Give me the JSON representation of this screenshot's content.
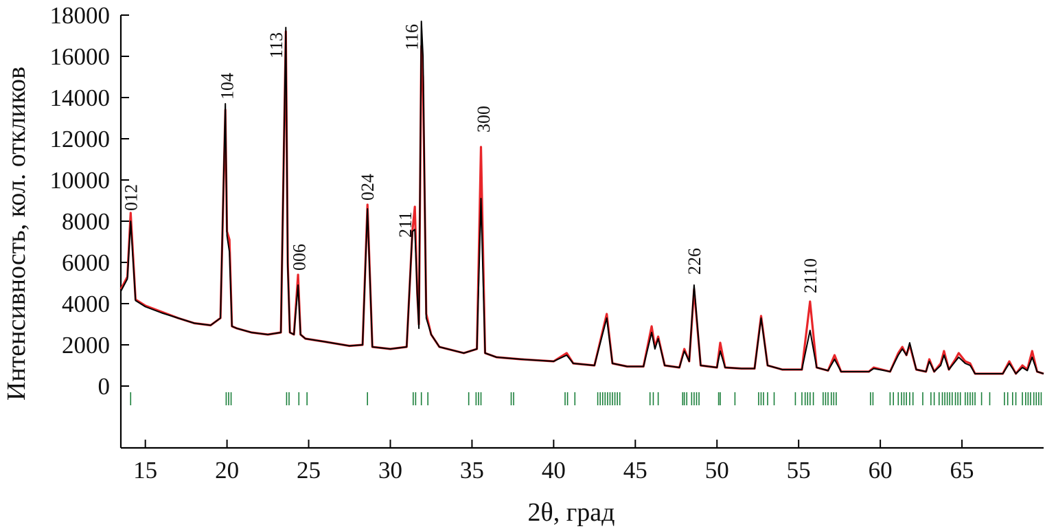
{
  "chart_data": {
    "type": "line",
    "xlabel": "2θ, град",
    "ylabel": "Интенсивность, кол. откликов",
    "xlim": [
      13.5,
      70
    ],
    "ylim": [
      -3000,
      18000
    ],
    "x_ticks": [
      15,
      20,
      25,
      30,
      35,
      40,
      45,
      50,
      55,
      60,
      65
    ],
    "y_ticks": [
      0,
      2000,
      4000,
      6000,
      8000,
      10000,
      12000,
      14000,
      16000,
      18000
    ],
    "grid": false,
    "colors": {
      "observed": "#e8262a",
      "calculated": "#000000",
      "bragg_ticks": "#1a7f3a"
    },
    "series": [
      {
        "role": "observed",
        "x": [
          13.5,
          13.9,
          14.1,
          14.4,
          15.0,
          16.0,
          17.0,
          18.0,
          19.0,
          19.6,
          19.9,
          20.0,
          20.15,
          20.3,
          20.6,
          21.5,
          22.5,
          23.3,
          23.6,
          23.72,
          23.85,
          24.1,
          24.35,
          24.5,
          24.8,
          26.0,
          27.5,
          28.3,
          28.6,
          28.9,
          30.0,
          31.0,
          31.35,
          31.5,
          31.65,
          31.75,
          31.9,
          32.0,
          32.2,
          32.5,
          33.0,
          34.5,
          35.3,
          35.55,
          35.8,
          36.5,
          38.0,
          40.0,
          40.8,
          41.2,
          42.5,
          43.25,
          43.6,
          44.5,
          45.5,
          46.0,
          46.2,
          46.4,
          46.8,
          47.7,
          48.0,
          48.3,
          48.6,
          49.0,
          50.0,
          50.2,
          50.5,
          51.5,
          52.3,
          52.7,
          53.1,
          54.0,
          55.2,
          55.7,
          56.1,
          56.8,
          57.2,
          57.6,
          59.3,
          59.6,
          60.6,
          61.1,
          61.35,
          61.6,
          61.8,
          62.2,
          62.8,
          63.0,
          63.3,
          63.7,
          63.9,
          64.2,
          64.6,
          64.8,
          65.2,
          65.5,
          65.8,
          67.5,
          67.9,
          68.3,
          68.7,
          69.0,
          69.3,
          69.6,
          70.0
        ],
        "y": [
          4700,
          5300,
          8400,
          4200,
          3900,
          3600,
          3300,
          3050,
          2950,
          3300,
          13400,
          7500,
          7100,
          2900,
          2800,
          2600,
          2500,
          2600,
          17200,
          6000,
          2600,
          2500,
          5400,
          2500,
          2300,
          2150,
          1950,
          2000,
          8800,
          1900,
          1800,
          1900,
          7500,
          8700,
          4500,
          3000,
          16500,
          15000,
          3500,
          2500,
          1900,
          1600,
          1800,
          11600,
          1600,
          1400,
          1300,
          1200,
          1600,
          1100,
          1000,
          3500,
          1100,
          950,
          950,
          2900,
          1900,
          2400,
          1000,
          900,
          1800,
          1200,
          4700,
          1000,
          900,
          2100,
          900,
          850,
          850,
          3400,
          1000,
          800,
          800,
          4100,
          900,
          750,
          1500,
          700,
          700,
          900,
          700,
          1600,
          1900,
          1500,
          2000,
          800,
          700,
          1300,
          700,
          1100,
          1700,
          800,
          1300,
          1600,
          1200,
          1100,
          600,
          600,
          1200,
          600,
          1000,
          800,
          1700,
          700,
          600
        ]
      },
      {
        "role": "calculated",
        "x": [
          13.5,
          13.9,
          14.1,
          14.4,
          15.0,
          16.0,
          17.0,
          18.0,
          19.0,
          19.6,
          19.9,
          20.0,
          20.15,
          20.3,
          20.6,
          21.5,
          22.5,
          23.3,
          23.6,
          23.72,
          23.85,
          24.1,
          24.35,
          24.5,
          24.8,
          26.0,
          27.5,
          28.3,
          28.6,
          28.9,
          30.0,
          31.0,
          31.35,
          31.5,
          31.65,
          31.75,
          31.9,
          32.0,
          32.2,
          32.5,
          33.0,
          34.5,
          35.3,
          35.55,
          35.8,
          36.5,
          38.0,
          40.0,
          40.8,
          41.2,
          42.5,
          43.25,
          43.6,
          44.5,
          45.5,
          46.0,
          46.2,
          46.4,
          46.8,
          47.7,
          48.0,
          48.3,
          48.6,
          49.0,
          50.0,
          50.2,
          50.5,
          51.5,
          52.3,
          52.7,
          53.1,
          54.0,
          55.2,
          55.7,
          56.1,
          56.8,
          57.2,
          57.6,
          59.3,
          59.6,
          60.6,
          61.1,
          61.35,
          61.6,
          61.8,
          62.2,
          62.8,
          63.0,
          63.3,
          63.7,
          63.9,
          64.2,
          64.6,
          64.8,
          65.2,
          65.5,
          65.8,
          67.5,
          67.9,
          68.3,
          68.7,
          69.0,
          69.3,
          69.6,
          70.0
        ],
        "y": [
          4600,
          5200,
          8000,
          4150,
          3850,
          3550,
          3300,
          3050,
          2950,
          3300,
          13700,
          7300,
          6500,
          2900,
          2800,
          2600,
          2500,
          2600,
          17400,
          5800,
          2600,
          2500,
          4900,
          2500,
          2300,
          2150,
          1950,
          2000,
          8600,
          1900,
          1800,
          1900,
          7500,
          7600,
          4500,
          2800,
          17700,
          16000,
          3300,
          2500,
          1900,
          1600,
          1800,
          9100,
          1600,
          1400,
          1300,
          1200,
          1500,
          1100,
          1000,
          3300,
          1100,
          950,
          950,
          2600,
          1800,
          2300,
          1000,
          900,
          1700,
          1200,
          4900,
          1000,
          900,
          1700,
          900,
          850,
          850,
          3300,
          1000,
          800,
          800,
          2700,
          900,
          750,
          1300,
          700,
          700,
          850,
          700,
          1500,
          1800,
          1500,
          2100,
          800,
          700,
          1200,
          700,
          1000,
          1500,
          800,
          1200,
          1400,
          1100,
          1000,
          600,
          600,
          1100,
          600,
          900,
          750,
          1400,
          700,
          600
        ]
      }
    ],
    "bragg_positions": [
      14.1,
      19.95,
      20.1,
      20.25,
      23.65,
      23.8,
      24.4,
      24.9,
      28.6,
      31.4,
      31.55,
      31.9,
      32.3,
      34.8,
      35.25,
      35.4,
      35.55,
      37.4,
      37.55,
      40.7,
      40.85,
      41.3,
      42.7,
      42.85,
      43.0,
      43.15,
      43.3,
      43.45,
      43.6,
      43.75,
      43.9,
      44.05,
      45.9,
      46.1,
      46.4,
      47.9,
      48.0,
      48.15,
      48.45,
      48.6,
      48.75,
      48.9,
      50.1,
      50.2,
      51.1,
      52.55,
      52.7,
      52.85,
      53.1,
      53.5,
      54.8,
      55.2,
      55.4,
      55.55,
      55.7,
      55.9,
      56.5,
      56.65,
      56.8,
      57.0,
      57.15,
      57.3,
      59.4,
      59.55,
      60.6,
      60.8,
      61.1,
      61.3,
      61.45,
      61.6,
      61.8,
      62.0,
      62.6,
      63.1,
      63.3,
      63.6,
      63.8,
      63.95,
      64.1,
      64.25,
      64.4,
      64.6,
      64.75,
      64.9,
      65.2,
      65.35,
      65.5,
      65.65,
      65.8,
      66.2,
      66.7,
      67.6,
      67.8,
      68.1,
      68.3,
      68.7,
      68.9,
      69.05,
      69.2,
      69.4,
      69.55,
      69.7,
      69.85
    ],
    "peak_labels": [
      {
        "text": "012",
        "x": 14.1,
        "y": 8500
      },
      {
        "text": "104",
        "x": 20.0,
        "y": 13900
      },
      {
        "text": "113",
        "x": 23.0,
        "y": 15900
      },
      {
        "text": "006",
        "x": 24.4,
        "y": 5600
      },
      {
        "text": "024",
        "x": 28.6,
        "y": 9000
      },
      {
        "text": "211",
        "x": 30.9,
        "y": 7200
      },
      {
        "text": "116",
        "x": 31.3,
        "y": 16300
      },
      {
        "text": "300",
        "x": 35.7,
        "y": 12300
      },
      {
        "text": "226",
        "x": 48.6,
        "y": 5400
      },
      {
        "text": "2110",
        "x": 55.7,
        "y": 4500
      }
    ]
  }
}
